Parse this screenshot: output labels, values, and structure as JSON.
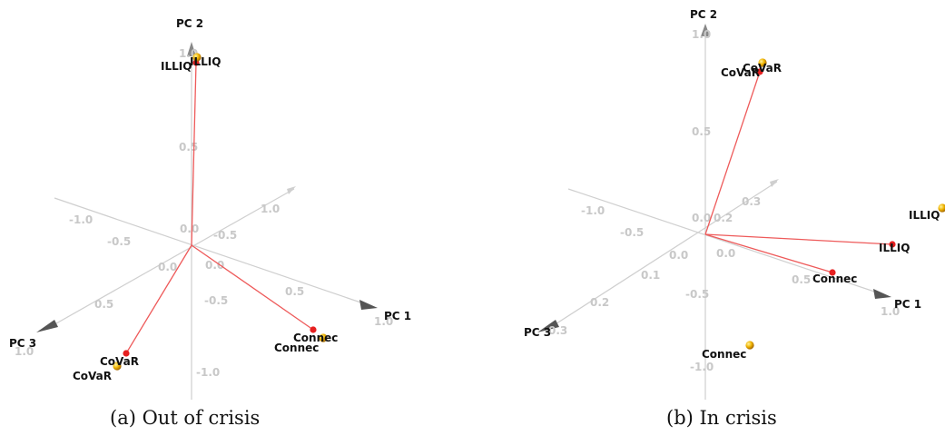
{
  "chart_data": [
    {
      "type": "scatter",
      "subtype": "3d-pca-biplot",
      "caption": "(a) Out of crisis",
      "axes": [
        {
          "name": "PC 1",
          "ticks": [
            "0.0",
            "0.5",
            "1.0"
          ]
        },
        {
          "name": "PC 2",
          "ticks": [
            "-1.0",
            "-0.5",
            "0.0",
            "0.5",
            "1.0"
          ]
        },
        {
          "name": "PC 3",
          "ticks": [
            "-1.0",
            "-0.5",
            "0.0",
            "0.5",
            "1.0"
          ]
        },
        {
          "name": "",
          "ticks": [
            "-0.5",
            "1.0"
          ]
        }
      ],
      "vectors": [
        {
          "label": "ILLIQ",
          "color": "#ee3333"
        },
        {
          "label": "CoVaR",
          "color": "#ee3333"
        },
        {
          "label": "Connec",
          "color": "#ee3333"
        }
      ],
      "points": [
        {
          "label": "ILLIQ",
          "color": "#e8a000"
        },
        {
          "label": "CoVaR",
          "color": "#e8a000"
        },
        {
          "label": "Connec",
          "color": "#e8a000"
        }
      ]
    },
    {
      "type": "scatter",
      "subtype": "3d-pca-biplot",
      "caption": "(b) In crisis",
      "axes": [
        {
          "name": "PC 1",
          "ticks": [
            "0.0",
            "0.5",
            "1.0"
          ]
        },
        {
          "name": "PC 2",
          "ticks": [
            "-1.0",
            "-0.5",
            "0.0",
            "0.5",
            "1.0"
          ]
        },
        {
          "name": "PC 3",
          "ticks": [
            "-1.0",
            "-0.5",
            "0.0",
            "0.1",
            "0.2",
            "0.3"
          ]
        },
        {
          "name": "",
          "ticks": [
            "0.2",
            "0.3"
          ]
        }
      ],
      "vectors": [
        {
          "label": "CoVaR",
          "color": "#ee3333"
        },
        {
          "label": "ILLIQ",
          "color": "#ee3333"
        },
        {
          "label": "Connec",
          "color": "#ee3333"
        }
      ],
      "points": [
        {
          "label": "CoVaR",
          "color": "#e8a000"
        },
        {
          "label": "ILLIQ",
          "color": "#e8a000"
        },
        {
          "label": "Connec",
          "color": "#e8a000"
        }
      ]
    }
  ]
}
